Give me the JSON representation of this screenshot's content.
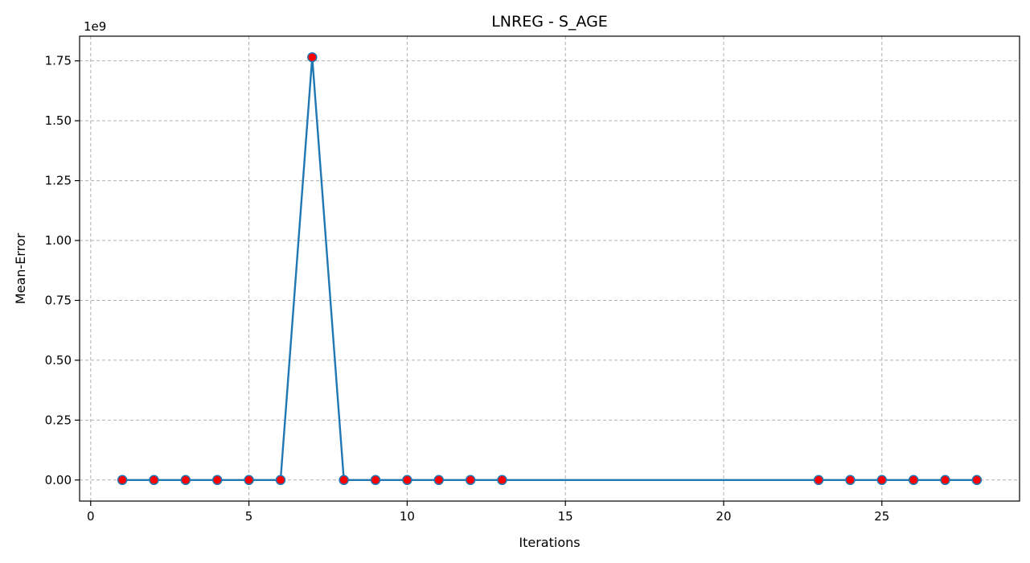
{
  "chart_data": {
    "type": "line",
    "title": "LNREG - S_AGE",
    "xlabel": "Iterations",
    "ylabel": "Mean-Error",
    "y_offset_label": "1e9",
    "y_scale_factor": 1000000000,
    "xlim": [
      -0.35,
      29.35
    ],
    "ylim": [
      -0.088,
      1.853
    ],
    "x_ticks": [
      0,
      5,
      10,
      15,
      20,
      25
    ],
    "x_tick_labels": [
      "0",
      "5",
      "10",
      "15",
      "20",
      "25"
    ],
    "y_ticks": [
      0,
      0.25,
      0.5,
      0.75,
      1.0,
      1.25,
      1.5,
      1.75
    ],
    "y_tick_labels": [
      "0.00",
      "0.25",
      "0.50",
      "0.75",
      "1.00",
      "1.25",
      "1.50",
      "1.75"
    ],
    "grid": true,
    "series": [
      {
        "line_color": "#1f77b4",
        "marker_face_color": "#ff0000",
        "marker_edge_color": "#1f77b4",
        "points": [
          {
            "x": 1,
            "y": 0
          },
          {
            "x": 2,
            "y": 0
          },
          {
            "x": 3,
            "y": 0
          },
          {
            "x": 4,
            "y": 0
          },
          {
            "x": 5,
            "y": 0
          },
          {
            "x": 6,
            "y": 0
          },
          {
            "x": 7,
            "y": 1.765
          },
          {
            "x": 8,
            "y": 0
          },
          {
            "x": 9,
            "y": 0
          },
          {
            "x": 10,
            "y": 0
          },
          {
            "x": 11,
            "y": 0
          },
          {
            "x": 12,
            "y": 0
          },
          {
            "x": 13,
            "y": 0
          },
          {
            "x": 23,
            "y": 0
          },
          {
            "x": 24,
            "y": 0
          },
          {
            "x": 25,
            "y": 0
          },
          {
            "x": 26,
            "y": 0
          },
          {
            "x": 27,
            "y": 0
          },
          {
            "x": 28,
            "y": 0
          }
        ]
      }
    ]
  }
}
